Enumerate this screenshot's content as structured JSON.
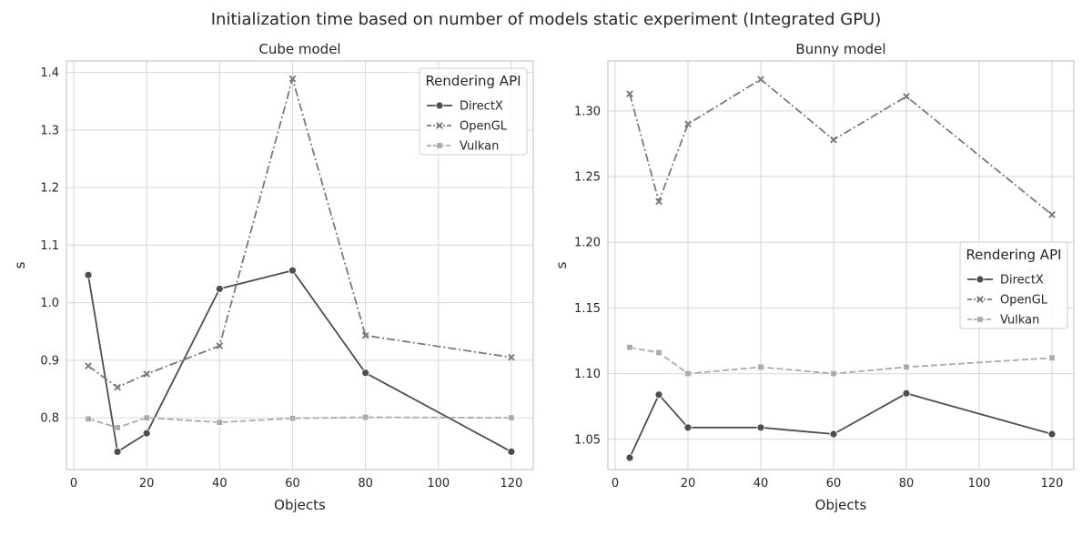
{
  "figure": {
    "title": "Initialization time based on number of models static experiment (Integrated GPU)"
  },
  "chart_data": [
    {
      "type": "line",
      "title": "Cube model",
      "xlabel": "Objects",
      "ylabel": "s",
      "xlim": [
        -2,
        126
      ],
      "ylim": [
        0.71,
        1.42
      ],
      "xticks": [
        0,
        20,
        40,
        60,
        80,
        100,
        120
      ],
      "yticks": [
        0.8,
        0.9,
        1.0,
        1.1,
        1.2,
        1.3,
        1.4
      ],
      "ytick_decimals": 1,
      "grid": true,
      "legend": {
        "title": "Rendering API",
        "position": "top-right"
      },
      "x": [
        4,
        12,
        20,
        40,
        60,
        80,
        120
      ],
      "series": [
        {
          "name": "DirectX",
          "values": [
            1.048,
            0.741,
            0.773,
            1.024,
            1.056,
            0.878,
            0.741
          ],
          "color": "#4d4d4d",
          "dash": "solid",
          "marker": "circle"
        },
        {
          "name": "OpenGL",
          "values": [
            0.89,
            0.853,
            0.876,
            0.925,
            1.389,
            0.943,
            0.905
          ],
          "color": "#7a7a7a",
          "dash": "dashdot",
          "marker": "x"
        },
        {
          "name": "Vulkan",
          "values": [
            0.798,
            0.783,
            0.8,
            0.792,
            0.799,
            0.801,
            0.8
          ],
          "color": "#aaaaaa",
          "dash": "dashed",
          "marker": "square"
        }
      ]
    },
    {
      "type": "line",
      "title": "Bunny model",
      "xlabel": "Objects",
      "ylabel": "s",
      "xlim": [
        -2,
        126
      ],
      "ylim": [
        1.027,
        1.338
      ],
      "xticks": [
        0,
        20,
        40,
        60,
        80,
        100,
        120
      ],
      "yticks": [
        1.05,
        1.1,
        1.15,
        1.2,
        1.25,
        1.3
      ],
      "ytick_decimals": 2,
      "grid": true,
      "legend": {
        "title": "Rendering API",
        "position": "center-right"
      },
      "x": [
        4,
        12,
        20,
        40,
        60,
        80,
        120
      ],
      "series": [
        {
          "name": "DirectX",
          "values": [
            1.036,
            1.084,
            1.059,
            1.059,
            1.054,
            1.085,
            1.054
          ],
          "color": "#4d4d4d",
          "dash": "solid",
          "marker": "circle"
        },
        {
          "name": "OpenGL",
          "values": [
            1.313,
            1.231,
            1.29,
            1.324,
            1.278,
            1.311,
            1.221
          ],
          "color": "#7a7a7a",
          "dash": "dashdot",
          "marker": "x"
        },
        {
          "name": "Vulkan",
          "values": [
            1.12,
            1.116,
            1.1,
            1.105,
            1.1,
            1.105,
            1.112
          ],
          "color": "#aaaaaa",
          "dash": "dashed",
          "marker": "square"
        }
      ]
    }
  ]
}
